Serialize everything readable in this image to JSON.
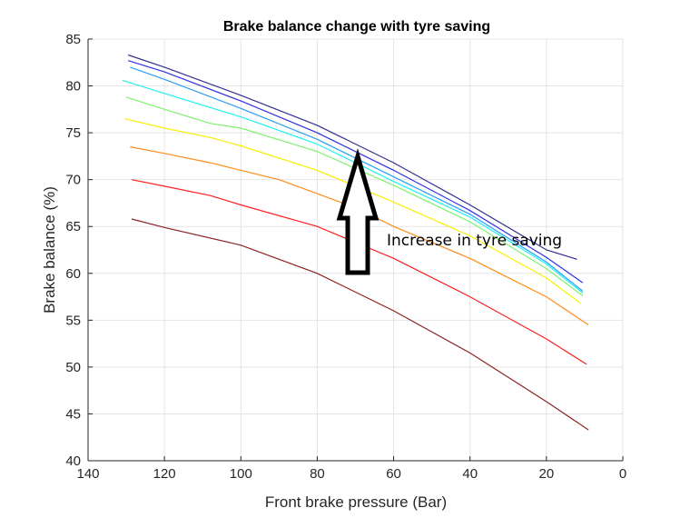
{
  "chart_data": {
    "type": "line",
    "title": "Brake balance change with tyre saving",
    "xlabel": "Front brake pressure (Bar)",
    "ylabel": "Brake balance (%)",
    "xlim": [
      140,
      0
    ],
    "ylim": [
      40,
      85
    ],
    "x_reversed": true,
    "xticks": [
      140,
      120,
      100,
      80,
      60,
      40,
      20,
      0
    ],
    "yticks": [
      40,
      45,
      50,
      55,
      60,
      65,
      70,
      75,
      80,
      85
    ],
    "grid": true,
    "legend": "none",
    "annotation": {
      "text": "Increase in tyre saving",
      "arrow": "up"
    },
    "series": [
      {
        "color": "#8b2323",
        "x": [
          128.6,
          120,
          100,
          80,
          60,
          40,
          20,
          9
        ],
        "y": [
          65.8,
          64.9,
          63.0,
          60.0,
          56.0,
          51.5,
          46.3,
          43.3
        ]
      },
      {
        "color": "#ff2020",
        "x": [
          128.6,
          120,
          108,
          100,
          80,
          60,
          40,
          20,
          9.5
        ],
        "y": [
          70.0,
          69.3,
          68.3,
          67.3,
          65.0,
          61.6,
          57.5,
          53.0,
          50.3
        ]
      },
      {
        "color": "#ff8c1a",
        "x": [
          129,
          120,
          108,
          100,
          90,
          80,
          70,
          60,
          40,
          20,
          9
        ],
        "y": [
          73.5,
          72.8,
          71.8,
          71.0,
          70.0,
          68.5,
          67.0,
          65.0,
          61.6,
          57.5,
          54.5
        ]
      },
      {
        "color": "#f5f000",
        "x": [
          130.5,
          120,
          108,
          100,
          80,
          60,
          40,
          20,
          11
        ],
        "y": [
          76.5,
          75.5,
          74.5,
          73.6,
          71.0,
          67.6,
          64.0,
          59.5,
          56.8
        ]
      },
      {
        "color": "#80f070",
        "x": [
          130,
          120,
          108,
          100,
          80,
          60,
          40,
          20,
          10.5
        ],
        "y": [
          78.8,
          77.5,
          76.0,
          75.5,
          73.0,
          69.4,
          65.5,
          60.5,
          57.6
        ]
      },
      {
        "color": "#20f0f0",
        "x": [
          131,
          120,
          100,
          80,
          60,
          40,
          20,
          10.5
        ],
        "y": [
          80.6,
          79.2,
          76.7,
          73.8,
          69.8,
          66.0,
          61.0,
          57.9
        ]
      },
      {
        "color": "#2a9df4",
        "x": [
          129,
          120,
          100,
          80,
          60,
          40,
          20,
          10.5
        ],
        "y": [
          82.0,
          80.7,
          77.6,
          74.3,
          70.3,
          66.3,
          61.2,
          58.1
        ]
      },
      {
        "color": "#3030e8",
        "x": [
          129.5,
          120,
          100,
          80,
          60,
          40,
          20,
          10.5
        ],
        "y": [
          82.7,
          81.5,
          78.4,
          75.0,
          71.0,
          66.7,
          61.7,
          59.0
        ]
      },
      {
        "color": "#303090",
        "x": [
          129.5,
          120,
          100,
          80,
          60,
          40,
          20,
          12
        ],
        "y": [
          83.3,
          82.0,
          79.0,
          75.8,
          71.8,
          67.3,
          62.5,
          61.5
        ]
      }
    ]
  }
}
